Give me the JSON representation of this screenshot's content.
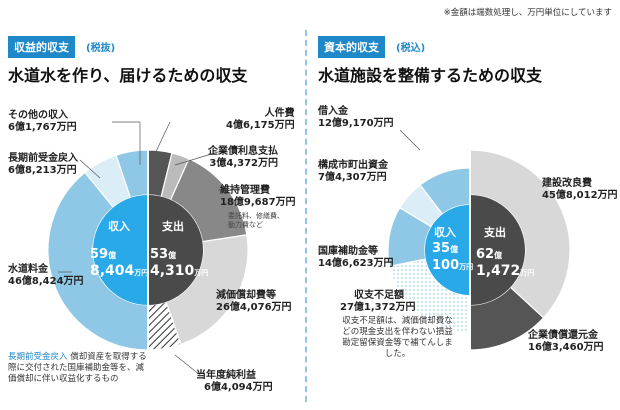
{
  "note": "※金額は端数処理し、万円単位にしています",
  "left": {
    "badge": "収益的収支",
    "tax": "(税抜)",
    "title": "水道水を作り、届けるための収支"
  },
  "right": {
    "badge": "資本的収支",
    "tax": "(税込)",
    "title": "水道施設を整備するための収支"
  },
  "left_footnote": {
    "term": "長期前受金戻入",
    "text": "償却資産を取得する際に交付された国庫補助金等を、減価償却に伴い収益化するもの"
  },
  "right_footnote": "収支不足額は、減価償却費などの現金支出を伴わない損益勘定留保資金等で補てんしました。",
  "maint_note": "委託料、修繕費、動力費など",
  "chart_data": [
    {
      "type": "pie",
      "title": "収益的収支",
      "unit": "万円",
      "inner": {
        "label": "収入",
        "total": "59億8,404万円",
        "total_big": "59",
        "total_unit": "億",
        "total_small": "8,404",
        "total_suffix": "万円",
        "slices": [
          {
            "name": "水道料金",
            "value": 468424,
            "display": "46億8,424万円",
            "color": "#8ec8e6"
          },
          {
            "name": "長期前受金戻入",
            "value": 68213,
            "display": "6億8,213万円",
            "color": "#dbeef8"
          },
          {
            "name": "その他の収入",
            "value": 61767,
            "display": "6億1,767万円",
            "color": "#8ec8e6"
          }
        ]
      },
      "outer": {
        "label": "支出",
        "total": "53億4,310万円",
        "total_big": "53",
        "total_unit": "億",
        "total_small": "4,310",
        "total_suffix": "万円",
        "slices": [
          {
            "name": "人件費",
            "value": 46175,
            "display": "4億6,175万円",
            "color": "#555555"
          },
          {
            "name": "企業債利息支払",
            "value": 34372,
            "display": "3億4,372万円",
            "color": "#bbbbbb"
          },
          {
            "name": "維持管理費",
            "value": 189687,
            "display": "18億9,687万円",
            "color": "#888888"
          },
          {
            "name": "減価償却費等",
            "value": 264076,
            "display": "26億4,076万円",
            "color": "#d8d8d8"
          },
          {
            "name": "当年度純利益",
            "value": 64094,
            "display": "6億4,094万円",
            "color": "hatch"
          }
        ]
      }
    },
    {
      "type": "pie",
      "title": "資本的収支",
      "unit": "万円",
      "inner": {
        "label": "収入",
        "total": "35億100万円",
        "total_big": "35",
        "total_unit": "億",
        "total_small": "100",
        "total_suffix": "万円",
        "slices": [
          {
            "name": "借入金",
            "value": 129170,
            "display": "12億9,170万円",
            "color": "#8ec8e6"
          },
          {
            "name": "構成市町出資金",
            "value": 74307,
            "display": "7億4,307万円",
            "color": "#dbeef8"
          },
          {
            "name": "国庫補助金等",
            "value": 146623,
            "display": "14億6,623万円",
            "color": "#8ec8e6"
          },
          {
            "name": "収支不足額",
            "value": 271372,
            "display": "27億1,372万円",
            "color": "dots"
          }
        ]
      },
      "outer": {
        "label": "支出",
        "total": "62億1,472万円",
        "total_big": "62",
        "total_unit": "億",
        "total_small": "1,472",
        "total_suffix": "万円",
        "slices": [
          {
            "name": "建設改良費",
            "value": 458012,
            "display": "45億8,012万円",
            "color": "#d8d8d8"
          },
          {
            "name": "企業債償還元金",
            "value": 163460,
            "display": "16億3,460万円",
            "color": "#555555"
          }
        ]
      }
    }
  ]
}
